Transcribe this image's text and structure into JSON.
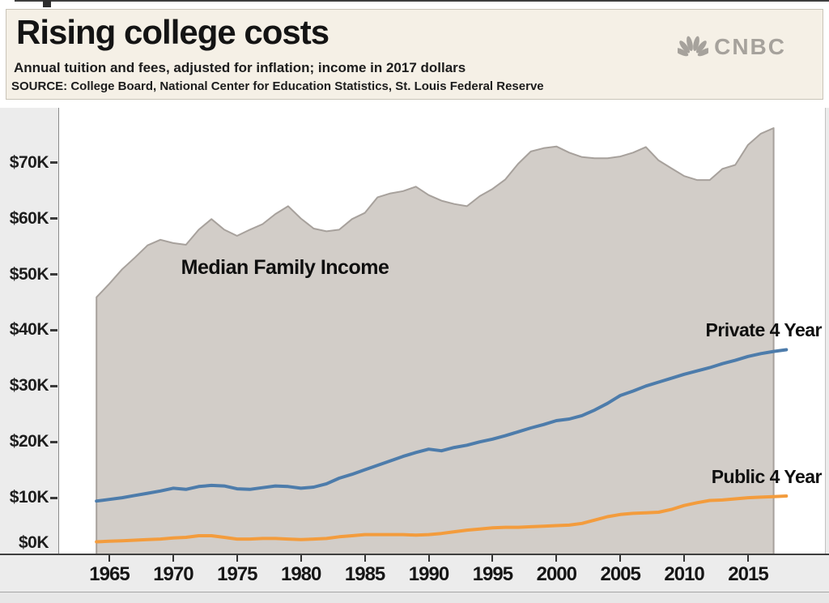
{
  "header": {
    "title": "Rising college costs",
    "subtitle": "Annual tuition and fees, adjusted for inflation; income in 2017 dollars",
    "source": "SOURCE: College Board, National Center for Education Statistics, St. Louis Federal Reserve",
    "logo_text": "CNBC"
  },
  "colors": {
    "header_bg": "#f5f0e6",
    "logo_gray": "#a6a29c",
    "income_fill": "#d2cdc8",
    "income_edge": "#a7a19c",
    "private_line": "#4d7cab",
    "public_line": "#f39c3d",
    "axis_text": "#1d1d1d"
  },
  "chart_data": {
    "type": "area+line",
    "title": "Rising college costs",
    "subtitle": "Annual tuition and fees, adjusted for inflation; income in 2017 dollars",
    "units": "thousands of 2017 dollars",
    "grid": false,
    "legend": "inline-labels",
    "xlim": [
      1963.9,
      2019
    ],
    "ylim": [
      0,
      79.8
    ],
    "x_axis": {
      "ticks": [
        {
          "label": "1965",
          "year": 1965
        },
        {
          "label": "1970",
          "year": 1970
        },
        {
          "label": "1975",
          "year": 1975
        },
        {
          "label": "1980",
          "year": 1980
        },
        {
          "label": "1985",
          "year": 1985
        },
        {
          "label": "1990",
          "year": 1990
        },
        {
          "label": "1995",
          "year": 1995
        },
        {
          "label": "2000",
          "year": 2000
        },
        {
          "label": "2005",
          "year": 2005
        },
        {
          "label": "2010",
          "year": 2010
        },
        {
          "label": "2015",
          "year": 2015
        }
      ]
    },
    "y_axis": {
      "ticks": [
        {
          "label": "$70K",
          "value": 70
        },
        {
          "label": "$60K",
          "value": 60
        },
        {
          "label": "$50K",
          "value": 50
        },
        {
          "label": "$40K",
          "value": 40
        },
        {
          "label": "$30K",
          "value": 30
        },
        {
          "label": "$20K",
          "value": 20
        },
        {
          "label": "$10K",
          "value": 10
        },
        {
          "label": "$0K",
          "value": 0
        }
      ]
    },
    "series": [
      {
        "name": "Median Family Income",
        "type": "area",
        "start_year": 1964,
        "end_year": 2017,
        "values": [
          45.9,
          48.3,
          50.9,
          53.0,
          55.2,
          56.2,
          55.6,
          55.3,
          58.0,
          59.9,
          58.0,
          56.9,
          58.0,
          59.0,
          60.8,
          62.2,
          60.0,
          58.2,
          57.7,
          58.0,
          59.9,
          61.0,
          63.8,
          64.5,
          64.9,
          65.7,
          64.2,
          63.2,
          62.6,
          62.2,
          64.0,
          65.3,
          67.0,
          69.8,
          72.0,
          72.6,
          72.9,
          71.8,
          71.0,
          70.8,
          70.8,
          71.1,
          71.8,
          72.8,
          70.4,
          69.0,
          67.6,
          66.9,
          66.9,
          68.9,
          69.6,
          73.2,
          75.2,
          76.2
        ]
      },
      {
        "name": "Private 4 Year",
        "type": "line",
        "start_year": 1964,
        "end_year": 2018,
        "values": [
          9.4,
          9.7,
          10.0,
          10.4,
          10.8,
          11.2,
          11.7,
          11.5,
          12.0,
          12.2,
          12.1,
          11.6,
          11.5,
          11.8,
          12.1,
          12.0,
          11.7,
          11.9,
          12.5,
          13.5,
          14.2,
          15.0,
          15.8,
          16.6,
          17.4,
          18.1,
          18.7,
          18.4,
          19.0,
          19.4,
          20.0,
          20.5,
          21.1,
          21.8,
          22.5,
          23.1,
          23.8,
          24.1,
          24.7,
          25.7,
          26.9,
          28.3,
          29.1,
          30.0,
          30.7,
          31.4,
          32.1,
          32.7,
          33.3,
          34.0,
          34.6,
          35.3,
          35.8,
          36.2,
          36.5
        ]
      },
      {
        "name": "Public 4 Year",
        "type": "line",
        "start_year": 1964,
        "end_year": 2018,
        "values": [
          2.1,
          2.2,
          2.3,
          2.4,
          2.5,
          2.6,
          2.8,
          2.9,
          3.2,
          3.2,
          2.9,
          2.6,
          2.6,
          2.7,
          2.7,
          2.6,
          2.5,
          2.6,
          2.7,
          3.0,
          3.2,
          3.4,
          3.4,
          3.4,
          3.4,
          3.3,
          3.4,
          3.6,
          3.9,
          4.2,
          4.4,
          4.6,
          4.7,
          4.7,
          4.8,
          4.9,
          5.0,
          5.1,
          5.4,
          6.0,
          6.6,
          7.0,
          7.2,
          7.3,
          7.4,
          7.9,
          8.6,
          9.1,
          9.5,
          9.6,
          9.8,
          10.0,
          10.1,
          10.2,
          10.3
        ]
      }
    ]
  }
}
